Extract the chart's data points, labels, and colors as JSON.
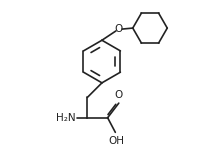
{
  "bg_color": "#ffffff",
  "line_color": "#222222",
  "line_width": 1.2,
  "text_color": "#222222",
  "font_size": 7.5,
  "xlim": [
    0,
    10
  ],
  "ylim": [
    0,
    7
  ]
}
